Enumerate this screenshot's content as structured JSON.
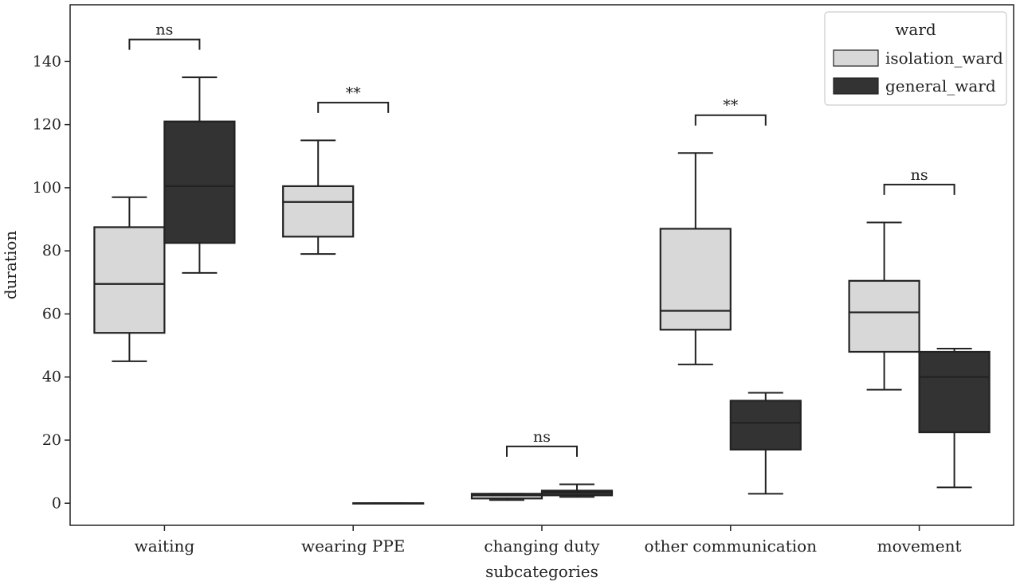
{
  "chart_data": {
    "type": "boxplot",
    "xlabel": "subcategories",
    "ylabel": "duration",
    "ylim": [
      -7,
      158
    ],
    "yticks": [
      0,
      20,
      40,
      60,
      80,
      100,
      120,
      140
    ],
    "categories": [
      "waiting",
      "wearing PPE",
      "changing duty",
      "other communication",
      "movement"
    ],
    "legend": {
      "title": "ward",
      "placement": "top-right"
    },
    "series": [
      {
        "name": "isolation_ward",
        "color": "#d8d8d8",
        "boxes": [
          {
            "whislo": 45,
            "q1": 54,
            "med": 69.5,
            "q3": 87.5,
            "whishi": 97
          },
          {
            "whislo": 79,
            "q1": 84.5,
            "med": 95.5,
            "q3": 100.5,
            "whishi": 115
          },
          {
            "whislo": 1,
            "q1": 1.5,
            "med": 2.5,
            "q3": 3,
            "whishi": 3
          },
          {
            "whislo": 44,
            "q1": 55,
            "med": 61,
            "q3": 87,
            "whishi": 111
          },
          {
            "whislo": 36,
            "q1": 48,
            "med": 60.5,
            "q3": 70.5,
            "whishi": 89
          }
        ]
      },
      {
        "name": "general_ward",
        "color": "#333333",
        "boxes": [
          {
            "whislo": 73,
            "q1": 82.5,
            "med": 100.5,
            "q3": 121,
            "whishi": 135
          },
          {
            "whislo": 0,
            "q1": 0,
            "med": 0,
            "q3": 0,
            "whishi": 0
          },
          {
            "whislo": 2,
            "q1": 2.5,
            "med": 3.5,
            "q3": 4,
            "whishi": 6
          },
          {
            "whislo": 3,
            "q1": 17,
            "med": 25.5,
            "q3": 32.5,
            "whishi": 35
          },
          {
            "whislo": 5,
            "q1": 22.5,
            "med": 40,
            "q3": 48,
            "whishi": 49
          }
        ]
      }
    ],
    "annotations": [
      {
        "category": "waiting",
        "text": "ns",
        "y": 147
      },
      {
        "category": "wearing PPE",
        "text": "**",
        "y": 127
      },
      {
        "category": "changing duty",
        "text": "ns",
        "y": 18
      },
      {
        "category": "other communication",
        "text": "**",
        "y": 123
      },
      {
        "category": "movement",
        "text": "ns",
        "y": 101
      }
    ]
  }
}
